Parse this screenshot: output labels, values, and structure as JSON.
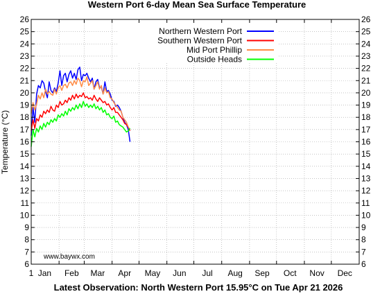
{
  "chart_data": {
    "type": "line",
    "title": "Western Port 6-day Mean Sea Surface Temperature",
    "ylabel": "Temperature (°C)",
    "xlabel": "",
    "footer": "Latest Observation: North Western Port 15.95°C on Tue Apr 21 2026",
    "watermark": "www.baywx.com",
    "ylim": [
      6,
      26
    ],
    "xlim": [
      1,
      366
    ],
    "y_ticks": [
      6,
      7,
      8,
      9,
      10,
      11,
      12,
      13,
      14,
      15,
      16,
      17,
      18,
      19,
      20,
      21,
      22,
      23,
      24,
      25,
      26
    ],
    "x_ticks": [
      {
        "label": "1",
        "day": 1
      },
      {
        "label": "Jan",
        "day": 16
      },
      {
        "label": "Feb",
        "day": 46
      },
      {
        "label": "Mar",
        "day": 75
      },
      {
        "label": "Apr",
        "day": 105
      },
      {
        "label": "May",
        "day": 136
      },
      {
        "label": "Jun",
        "day": 166
      },
      {
        "label": "Jul",
        "day": 197
      },
      {
        "label": "Aug",
        "day": 228
      },
      {
        "label": "Sep",
        "day": 258
      },
      {
        "label": "Oct",
        "day": 289
      },
      {
        "label": "Nov",
        "day": 319
      },
      {
        "label": "Dec",
        "day": 350
      }
    ],
    "x_grid_days": [
      32,
      60,
      91,
      121,
      152,
      182,
      213,
      244,
      274,
      305,
      335
    ],
    "grid": true,
    "legend_position": "top-right",
    "series": [
      {
        "name": "Northern Western Port",
        "color": "#0000ff",
        "x": [
          1,
          3,
          5,
          7,
          9,
          11,
          13,
          15,
          17,
          19,
          21,
          23,
          25,
          27,
          29,
          31,
          33,
          35,
          37,
          39,
          41,
          43,
          45,
          47,
          49,
          51,
          53,
          55,
          57,
          59,
          61,
          63,
          65,
          67,
          69,
          71,
          73,
          75,
          77,
          79,
          81,
          83,
          85,
          87,
          89,
          91,
          93,
          95,
          97,
          99,
          101,
          103,
          105,
          107,
          109,
          111
        ],
        "y": [
          16.5,
          18.8,
          17.6,
          19.9,
          20.6,
          20.4,
          21.0,
          20.8,
          20.1,
          19.6,
          20.9,
          20.2,
          20.0,
          20.4,
          20.1,
          20.8,
          21.8,
          20.6,
          21.4,
          21.6,
          20.9,
          21.5,
          21.8,
          21.2,
          21.6,
          21.1,
          21.9,
          22.1,
          21.0,
          21.5,
          21.4,
          21.6,
          21.2,
          20.9,
          21.2,
          20.3,
          20.9,
          21.1,
          20.4,
          20.5,
          19.9,
          20.9,
          20.1,
          20.2,
          19.9,
          19.4,
          19.3,
          18.9,
          19.0,
          18.8,
          18.5,
          18.0,
          17.6,
          17.4,
          17.0,
          16.0
        ]
      },
      {
        "name": "Southern Western Port",
        "color": "#ff0000",
        "x": [
          1,
          3,
          5,
          7,
          9,
          11,
          13,
          15,
          17,
          19,
          21,
          23,
          25,
          27,
          29,
          31,
          33,
          35,
          37,
          39,
          41,
          43,
          45,
          47,
          49,
          51,
          53,
          55,
          57,
          59,
          61,
          63,
          65,
          67,
          69,
          71,
          73,
          75,
          77,
          79,
          81,
          83,
          85,
          87,
          89,
          91,
          93,
          95,
          97,
          99,
          101,
          103,
          105,
          107,
          109,
          111
        ],
        "y": [
          16.9,
          17.8,
          17.1,
          17.9,
          17.7,
          18.2,
          18.0,
          18.5,
          18.3,
          18.6,
          18.4,
          18.9,
          18.6,
          18.5,
          19.0,
          18.8,
          19.3,
          19.0,
          19.1,
          19.4,
          19.2,
          19.6,
          19.4,
          19.8,
          19.5,
          19.9,
          19.6,
          19.8,
          19.7,
          20.0,
          19.6,
          19.7,
          19.5,
          19.6,
          19.4,
          19.8,
          19.5,
          19.3,
          19.6,
          19.4,
          19.2,
          19.3,
          19.0,
          19.1,
          18.8,
          18.6,
          18.8,
          18.4,
          18.4,
          18.2,
          18.0,
          17.8,
          17.5,
          17.4,
          17.2,
          16.9
        ]
      },
      {
        "name": "Mid Port Phillip",
        "color": "#ff8c46",
        "x": [
          1,
          3,
          5,
          7,
          9,
          11,
          13,
          15,
          17,
          19,
          21,
          23,
          25,
          27,
          29,
          31,
          33,
          35,
          37,
          39,
          41,
          43,
          45,
          47,
          49,
          51,
          53,
          55,
          57,
          59,
          61,
          63,
          65,
          67,
          69,
          71,
          73,
          75,
          77,
          79,
          81,
          83,
          85,
          87,
          89,
          91,
          93,
          95,
          97,
          99,
          101,
          103,
          105,
          107,
          109,
          111
        ],
        "y": [
          18.3,
          19.2,
          18.6,
          19.1,
          19.8,
          19.5,
          20.0,
          19.6,
          20.3,
          19.9,
          20.1,
          19.9,
          19.8,
          20.3,
          19.9,
          20.4,
          20.6,
          20.2,
          20.6,
          20.7,
          20.4,
          20.8,
          20.9,
          20.6,
          21.0,
          20.7,
          21.2,
          21.0,
          20.5,
          21.0,
          20.9,
          21.3,
          20.6,
          20.8,
          21.0,
          20.3,
          20.6,
          20.9,
          20.3,
          20.6,
          19.9,
          20.4,
          20.0,
          20.1,
          19.6,
          19.5,
          19.2,
          19.0,
          18.8,
          18.6,
          18.5,
          18.0,
          17.8,
          17.6,
          17.2,
          17.0
        ]
      },
      {
        "name": "Outside Heads",
        "color": "#00ff00",
        "x": [
          1,
          3,
          5,
          7,
          9,
          11,
          13,
          15,
          17,
          19,
          21,
          23,
          25,
          27,
          29,
          31,
          33,
          35,
          37,
          39,
          41,
          43,
          45,
          47,
          49,
          51,
          53,
          55,
          57,
          59,
          61,
          63,
          65,
          67,
          69,
          71,
          73,
          75,
          77,
          79,
          81,
          83,
          85,
          87,
          89,
          91,
          93,
          95,
          97,
          99,
          101,
          103,
          105,
          107,
          109,
          111
        ],
        "y": [
          15.6,
          17.0,
          16.4,
          17.1,
          16.8,
          17.3,
          17.0,
          17.5,
          17.2,
          17.6,
          17.4,
          17.8,
          17.6,
          17.9,
          17.7,
          18.2,
          18.0,
          18.3,
          18.1,
          18.5,
          18.2,
          18.7,
          18.5,
          18.8,
          18.6,
          19.0,
          18.7,
          19.1,
          18.8,
          19.3,
          18.9,
          19.1,
          18.8,
          19.0,
          18.8,
          19.1,
          18.7,
          18.9,
          18.6,
          18.8,
          18.4,
          18.6,
          18.2,
          18.3,
          18.0,
          17.9,
          18.1,
          17.6,
          17.7,
          17.4,
          17.3,
          17.2,
          17.0,
          16.8,
          16.9,
          17.1
        ]
      }
    ]
  }
}
